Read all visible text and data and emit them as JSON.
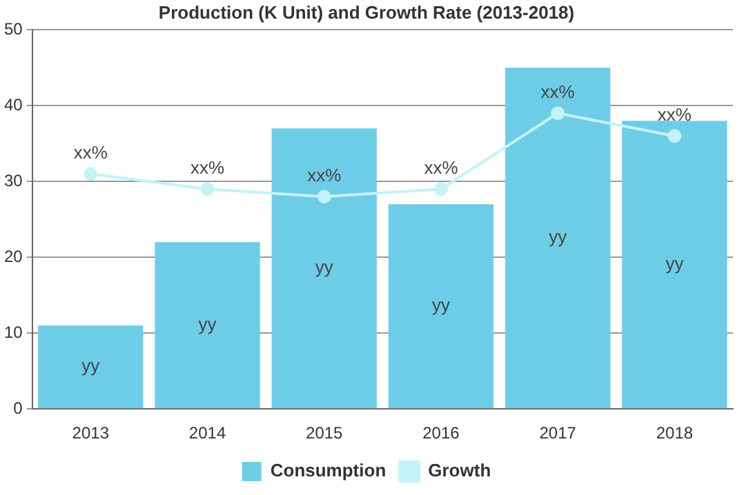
{
  "chart_data": {
    "type": "bar",
    "title": "Production (K Unit) and Growth Rate (2013-2018)",
    "categories": [
      "2013",
      "2014",
      "2015",
      "2016",
      "2017",
      "2018"
    ],
    "series": [
      {
        "name": "Consumption",
        "color": "#6ecde6",
        "values": [
          11,
          22,
          37,
          27,
          45,
          38
        ],
        "value_labels": [
          "yy",
          "yy",
          "yy",
          "yy",
          "yy",
          "yy"
        ]
      },
      {
        "name": "Growth",
        "type": "line",
        "color": "#c4f2f7",
        "values": [
          31,
          29,
          28,
          29,
          39,
          36
        ],
        "value_labels": [
          "xx%",
          "xx%",
          "xx%",
          "xx%",
          "xx%",
          "xx%"
        ]
      }
    ],
    "ylim": [
      0,
      50
    ],
    "yticks": [
      0,
      10,
      20,
      30,
      40,
      50
    ],
    "grid": "y",
    "legend": "bottom",
    "marker": "circle"
  }
}
